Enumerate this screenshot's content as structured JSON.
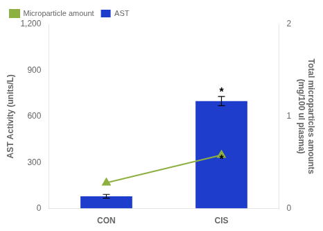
{
  "chart_data": {
    "type": "bar",
    "categories": [
      "CON",
      "CIS"
    ],
    "series": [
      {
        "name": "AST",
        "type": "bar",
        "color": "#1E3DCC",
        "values": [
          80,
          700
        ],
        "errors": [
          12,
          30
        ]
      },
      {
        "name": "Microparticle amount",
        "type": "line",
        "color": "#8DB040",
        "values": [
          0.28,
          0.58
        ],
        "axis": "y2",
        "marker": "triangle"
      }
    ],
    "ylabel": "AST Activity (units/L)",
    "y2label": "Total microparticles amounts\n(mg/100 ul plasma)",
    "ylim": [
      0,
      1200
    ],
    "yticks": [
      0,
      300,
      600,
      900,
      {
        "value": 1200,
        "label": "1,200"
      }
    ],
    "y2lim": [
      0,
      2
    ],
    "y2ticks": [
      0,
      1,
      2
    ],
    "annotations": [
      {
        "text": "*",
        "x": "CIS",
        "y": 755
      },
      {
        "text": "*",
        "x": "CIS",
        "y": 318
      }
    ],
    "legend": "upper left",
    "grid": false
  }
}
